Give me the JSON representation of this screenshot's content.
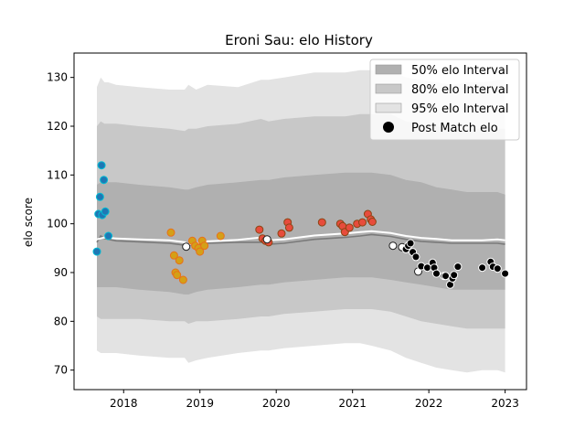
{
  "chart_data": {
    "type": "scatter",
    "title": "Eroni Sau: elo History",
    "xlabel": "",
    "ylabel": "elo score",
    "xlim": [
      2017.35,
      2023.28
    ],
    "ylim": [
      66,
      135
    ],
    "xticks": [
      2018,
      2019,
      2020,
      2021,
      2022,
      2023
    ],
    "yticks": [
      70,
      80,
      90,
      100,
      110,
      120,
      130
    ],
    "legend": {
      "placement": "top-right",
      "entries": [
        "50% elo Interval",
        "80% elo Interval",
        "95% elo Interval",
        "Post Match elo"
      ]
    },
    "colors": {
      "band50": "#b0b0b0",
      "band80": "#c8c8c8",
      "band95": "#e3e3e3",
      "mean_line": "#7a7a7a",
      "white_line": "#ffffff",
      "edge": "#1f1f1f"
    },
    "bands": {
      "x": [
        2017.65,
        2017.7,
        2017.75,
        2017.8,
        2017.9,
        2018.2,
        2018.6,
        2018.8,
        2018.85,
        2018.95,
        2019.1,
        2019.5,
        2019.8,
        2019.9,
        2020.1,
        2020.5,
        2020.9,
        2021.1,
        2021.25,
        2021.5,
        2021.7,
        2021.9,
        2022.1,
        2022.3,
        2022.5,
        2022.7,
        2022.9,
        2023.0
      ],
      "upper95": [
        128,
        130,
        129,
        129,
        128.5,
        128,
        127.5,
        127.5,
        128.5,
        127.5,
        128.5,
        128,
        129.5,
        129.5,
        130,
        131,
        131,
        131.5,
        131.5,
        131.5,
        130,
        129.5,
        129,
        128.5,
        129,
        129,
        129.5,
        129.5
      ],
      "lower95": [
        74,
        73.5,
        73.5,
        73.5,
        73.5,
        73,
        72.5,
        72.5,
        71.5,
        72,
        72.5,
        73.5,
        74,
        74,
        74.5,
        75,
        75.5,
        75.5,
        75,
        74,
        72.5,
        71.5,
        70.5,
        70,
        69.5,
        70,
        70,
        69.5
      ],
      "upper80": [
        120,
        121,
        120.5,
        120.5,
        120.5,
        120,
        119.5,
        119,
        119.5,
        119.5,
        120,
        120.5,
        121.5,
        121,
        121.5,
        122,
        122,
        122.5,
        122.5,
        122.5,
        121,
        120.5,
        120,
        119.5,
        119.5,
        119.5,
        119.5,
        119.5
      ],
      "lower80": [
        81,
        80.5,
        80.5,
        80.5,
        80.5,
        80.5,
        80,
        80,
        79.5,
        80,
        80,
        80.5,
        81,
        81,
        81.5,
        82,
        82.5,
        82.5,
        82.5,
        82,
        81,
        80,
        79.5,
        79,
        78.5,
        78.5,
        78.5,
        78.5
      ],
      "upper50": [
        108,
        108.5,
        108.5,
        108.5,
        108.5,
        108,
        107.5,
        107,
        107,
        107.5,
        108,
        108.5,
        109,
        109,
        109.5,
        110,
        110.5,
        110.5,
        110.5,
        110,
        109,
        108.5,
        107.5,
        107,
        106.5,
        106.5,
        106.5,
        106
      ],
      "lower50": [
        87,
        87,
        87,
        87,
        87,
        86.5,
        86,
        85.5,
        85.5,
        86,
        86.5,
        87,
        87.5,
        87.5,
        88,
        88.5,
        89,
        89,
        89,
        88.5,
        88,
        87.5,
        87,
        86.5,
        86.5,
        86.5,
        86.5,
        86.5
      ]
    },
    "mean_line": {
      "x": [
        2017.65,
        2017.7,
        2017.75,
        2017.8,
        2017.9,
        2018.2,
        2018.6,
        2018.8,
        2018.85,
        2018.95,
        2019.1,
        2019.5,
        2019.8,
        2019.9,
        2020.1,
        2020.5,
        2020.9,
        2021.1,
        2021.25,
        2021.5,
        2021.7,
        2021.9,
        2022.1,
        2022.3,
        2022.5,
        2022.7,
        2022.9,
        2023.0
      ],
      "y": [
        96.2,
        97.5,
        97,
        96.8,
        96.5,
        96.3,
        96,
        95.6,
        95.6,
        95.8,
        96,
        96.2,
        96.2,
        95.8,
        96,
        96.8,
        97.2,
        97.5,
        97.8,
        97.4,
        96.8,
        96.4,
        96.2,
        96.0,
        96.0,
        96.0,
        96.0,
        95.8
      ]
    },
    "white_line": {
      "x": [
        2017.65,
        2017.75,
        2017.9,
        2018.2,
        2018.6,
        2018.8,
        2018.85,
        2018.95,
        2019.1,
        2019.5,
        2019.8,
        2019.9,
        2020.1,
        2020.5,
        2020.9,
        2021.1,
        2021.25,
        2021.5,
        2021.7,
        2021.9,
        2022.1,
        2022.3,
        2022.5,
        2022.7,
        2022.9,
        2023.0
      ],
      "y": [
        96.8,
        97.2,
        97,
        96.8,
        96.6,
        96.2,
        95.8,
        96,
        96.4,
        96.7,
        97.2,
        96.6,
        96.8,
        97.6,
        98,
        98.3,
        98.5,
        98.1,
        97.5,
        97.1,
        96.9,
        96.6,
        96.6,
        96.6,
        96.8,
        96.6
      ]
    },
    "series": [
      {
        "color": "#1f77b4",
        "edge": "#00bcd4",
        "x": [
          2017.65,
          2017.67,
          2017.69,
          2017.71,
          2017.72,
          2017.74,
          2017.76,
          2017.8
        ],
        "y": [
          94.3,
          102,
          105.5,
          112,
          101.8,
          109,
          102.5,
          97.5
        ]
      },
      {
        "color": "#d4a017",
        "edge": "#e8701a",
        "x": [
          2018.62,
          2018.66,
          2018.68,
          2018.7,
          2018.73,
          2018.78,
          2018.9,
          2018.94,
          2018.98,
          2019.0,
          2019.03,
          2019.06,
          2019.27
        ],
        "y": [
          98.2,
          93.5,
          90,
          89.5,
          92.5,
          88.5,
          96.5,
          95.5,
          95,
          94.3,
          96.5,
          95.5,
          97.5
        ]
      },
      {
        "color": "#e74c3c",
        "edge": "#8b4513",
        "x": [
          2019.78,
          2019.82,
          2019.86,
          2019.9,
          2020.07,
          2020.15,
          2020.17,
          2020.6,
          2020.84,
          2020.87,
          2020.9,
          2020.96,
          2021.06,
          2021.13,
          2021.2,
          2021.24,
          2021.26
        ],
        "y": [
          98.8,
          97,
          96.5,
          96.2,
          98,
          100.3,
          99.2,
          100.3,
          100,
          99.5,
          98.3,
          99.2,
          100,
          100.3,
          102,
          100.9,
          100.4
        ]
      },
      {
        "color": "#000000",
        "edge": "#ffffff",
        "x": [
          2018.82,
          2019.88,
          2021.53,
          2021.65,
          2021.7,
          2021.73,
          2021.76,
          2021.79,
          2021.83,
          2021.86,
          2021.9,
          2021.98,
          2022.05,
          2022.07,
          2022.1,
          2022.2,
          2022.22,
          2022.28,
          2022.31,
          2022.33,
          2022.38,
          2022.7,
          2022.81,
          2022.84,
          2022.9,
          2023.0
        ],
        "y": [
          95.3,
          96.8,
          95.5,
          95.2,
          94.8,
          95.5,
          96,
          94.2,
          93.2,
          90.2,
          91.3,
          91,
          92,
          91,
          89.8,
          89.3,
          89.3,
          87.5,
          88.8,
          89.5,
          91.2,
          91,
          92.2,
          91.2,
          90.8,
          89.8
        ],
        "hollow_indices": [
          0,
          1,
          2,
          3,
          9
        ]
      }
    ]
  }
}
